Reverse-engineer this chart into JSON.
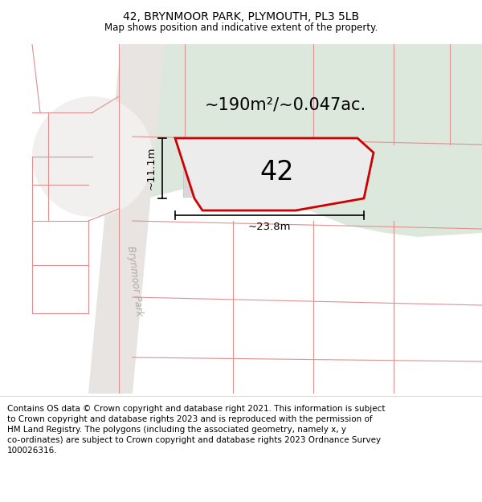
{
  "title": "42, BRYNMOOR PARK, PLYMOUTH, PL3 5LB",
  "subtitle": "Map shows position and indicative extent of the property.",
  "footer": "Contains OS data © Crown copyright and database right 2021. This information is subject\nto Crown copyright and database rights 2023 and is reproduced with the permission of\nHM Land Registry. The polygons (including the associated geometry, namely x, y\nco-ordinates) are subject to Crown copyright and database rights 2023 Ordnance Survey\n100026316.",
  "area_label": "~190m²/~0.047ac.",
  "width_label": "~23.8m",
  "height_label": "~11.1m",
  "property_number": "42",
  "property_edge": "#cc0000",
  "property_fill": "#ececec",
  "building_fill": "#d8d8d8",
  "road_line_color": "#e09090",
  "title_fontsize": 10,
  "subtitle_fontsize": 8.5,
  "footer_fontsize": 7.5
}
